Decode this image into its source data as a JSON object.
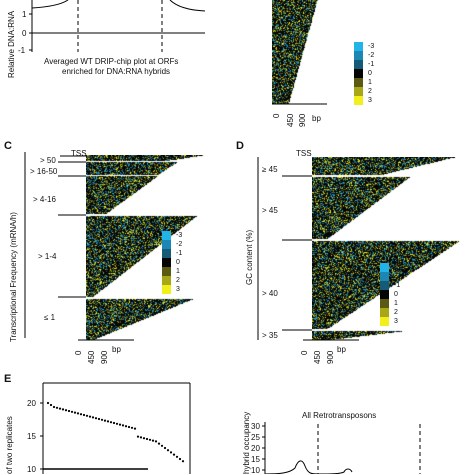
{
  "panel_a": {
    "ylabel": "Relative DNA:RNA",
    "tick_1": "1",
    "tick_0": "0",
    "tick_m1": "-1",
    "caption_line1": "Averaged WT DRIP-chip plot at ORFs",
    "caption_line2": "enriched for DNA:RNA hybrids"
  },
  "panel_b": {
    "x_ticks": [
      "0",
      "450",
      "900"
    ],
    "x_unit": "bp"
  },
  "legend": {
    "values": [
      "-3",
      "-2",
      "-1",
      "0",
      "1",
      "2",
      "3"
    ],
    "colors": [
      "#22b3e8",
      "#1c86b4",
      "#145b78",
      "#050505",
      "#5a5a12",
      "#a8a816",
      "#f2ef1c"
    ]
  },
  "panel_c": {
    "letter": "C",
    "tss_label": "TSS",
    "ylabel": "Transcriptional Frequency (mRNA/h)",
    "groups": [
      "> 50",
      "> 16-50",
      "> 4-16",
      "> 1-4",
      "≤ 1"
    ],
    "x_ticks": [
      "0",
      "450",
      "900"
    ],
    "x_unit": "bp"
  },
  "panel_d": {
    "letter": "D",
    "tss_label": "TSS",
    "ylabel": "GC content (%)",
    "groups": [
      "≥ 45",
      "> 45",
      "> 40",
      "> 35"
    ],
    "x_ticks": [
      "0",
      "450",
      "900"
    ],
    "x_unit": "bp"
  },
  "panel_e": {
    "letter": "E",
    "ylabel_fragment": "of two replicates",
    "y_ticks": [
      "20",
      "15",
      "10"
    ]
  },
  "panel_f": {
    "title": "All Retrotransposons",
    "ylabel_fragment": "hybrid occupancy",
    "y_ticks": [
      "30",
      "25",
      "20",
      "15",
      "10"
    ]
  }
}
